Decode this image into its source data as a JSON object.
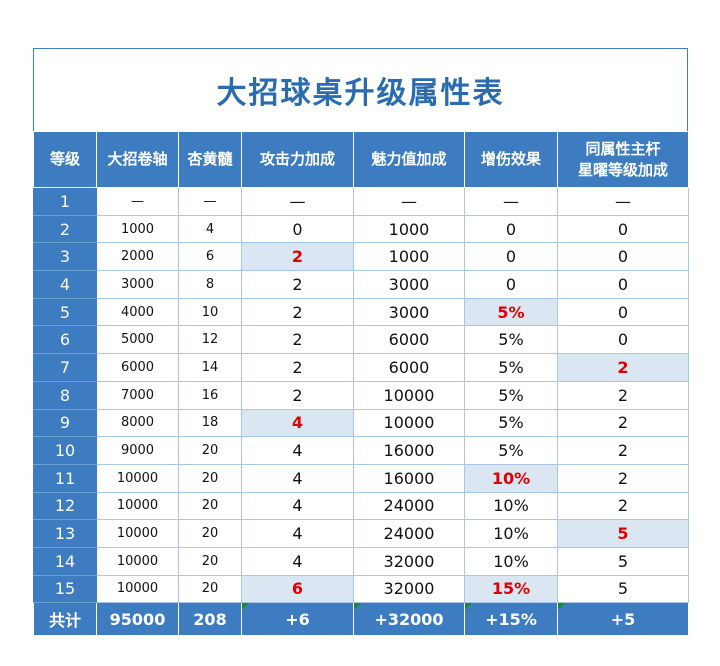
{
  "title": "大招球桌升级属性表",
  "headers": [
    "等级",
    "大招卷轴",
    "杏黄髓",
    "攻击力加成",
    "魅力值加成",
    "增伤效果",
    "同属性主杆\n星曜等级加成"
  ],
  "header_last_line1": "同属性主杆",
  "header_last_line2": "星曜等级加成",
  "rows": [
    {
      "level": "1",
      "scroll": "—",
      "apricot": "—",
      "attack": "—",
      "charm": "—",
      "damage": "—",
      "star": "—"
    },
    {
      "level": "2",
      "scroll": "1000",
      "apricot": "4",
      "attack": "0",
      "charm": "1000",
      "damage": "0",
      "star": "0"
    },
    {
      "level": "3",
      "scroll": "2000",
      "apricot": "6",
      "attack": "2",
      "charm": "1000",
      "damage": "0",
      "star": "0"
    },
    {
      "level": "4",
      "scroll": "3000",
      "apricot": "8",
      "attack": "2",
      "charm": "3000",
      "damage": "0",
      "star": "0"
    },
    {
      "level": "5",
      "scroll": "4000",
      "apricot": "10",
      "attack": "2",
      "charm": "3000",
      "damage": "5%",
      "star": "0"
    },
    {
      "level": "6",
      "scroll": "5000",
      "apricot": "12",
      "attack": "2",
      "charm": "6000",
      "damage": "5%",
      "star": "0"
    },
    {
      "level": "7",
      "scroll": "6000",
      "apricot": "14",
      "attack": "2",
      "charm": "6000",
      "damage": "5%",
      "star": "2"
    },
    {
      "level": "8",
      "scroll": "7000",
      "apricot": "16",
      "attack": "2",
      "charm": "10000",
      "damage": "5%",
      "star": "2"
    },
    {
      "level": "9",
      "scroll": "8000",
      "apricot": "18",
      "attack": "4",
      "charm": "10000",
      "damage": "5%",
      "star": "2"
    },
    {
      "level": "10",
      "scroll": "9000",
      "apricot": "20",
      "attack": "4",
      "charm": "16000",
      "damage": "5%",
      "star": "2"
    },
    {
      "level": "11",
      "scroll": "10000",
      "apricot": "20",
      "attack": "4",
      "charm": "16000",
      "damage": "10%",
      "star": "2"
    },
    {
      "level": "12",
      "scroll": "10000",
      "apricot": "20",
      "attack": "4",
      "charm": "24000",
      "damage": "10%",
      "star": "2"
    },
    {
      "level": "13",
      "scroll": "10000",
      "apricot": "20",
      "attack": "4",
      "charm": "24000",
      "damage": "10%",
      "star": "5"
    },
    {
      "level": "14",
      "scroll": "10000",
      "apricot": "20",
      "attack": "4",
      "charm": "32000",
      "damage": "10%",
      "star": "5"
    },
    {
      "level": "15",
      "scroll": "10000",
      "apricot": "20",
      "attack": "6",
      "charm": "32000",
      "damage": "15%",
      "star": "5"
    }
  ],
  "highlights": {
    "attack": [
      "3",
      "9",
      "15"
    ],
    "damage": [
      "5",
      "11",
      "15"
    ],
    "star": [
      "7",
      "13"
    ]
  },
  "total": {
    "label": "共计",
    "scroll": "95000",
    "apricot": "208",
    "attack": "+6",
    "charm": "+32000",
    "damage": "+15%",
    "star": "+5"
  },
  "colors": {
    "header_bg": "#3d7cc0",
    "title": "#2b6cb0",
    "highlight_bg": "#dbe6f3",
    "highlight_text": "#e00000",
    "grid": "#a9c6e6",
    "comment_marker": "#1a8a2e"
  }
}
